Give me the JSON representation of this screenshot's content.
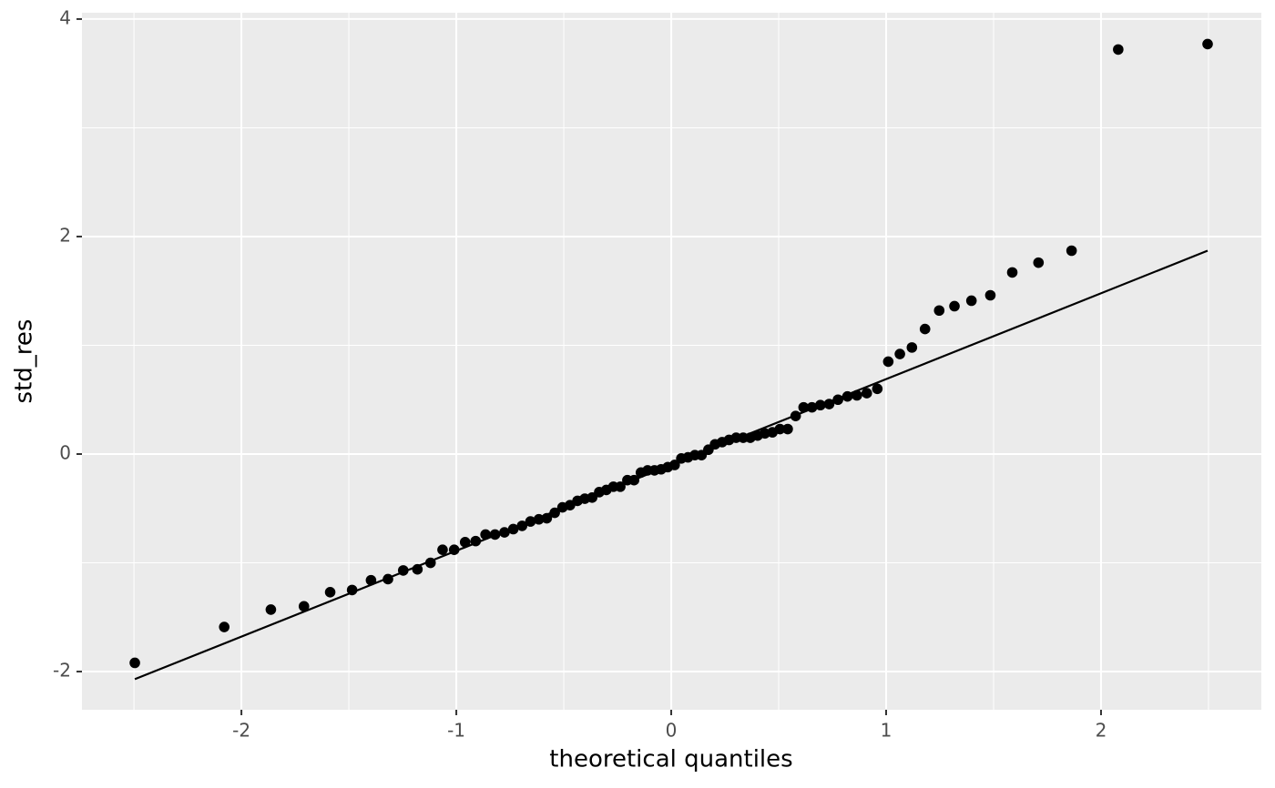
{
  "chart_data": {
    "type": "scatter",
    "xlabel": "theoretical quantiles",
    "ylabel": "std_res",
    "xlim": [
      -2.742,
      2.746
    ],
    "ylim": [
      -2.351,
      4.058
    ],
    "xticks": [
      -2,
      -1,
      0,
      1,
      2
    ],
    "yticks": [
      -2,
      0,
      2,
      4
    ],
    "grid": true,
    "color": "#000000",
    "x": [
      -2.496,
      -2.08,
      -1.863,
      -1.709,
      -1.587,
      -1.485,
      -1.397,
      -1.318,
      -1.247,
      -1.181,
      -1.12,
      -1.064,
      -1.01,
      -0.959,
      -0.91,
      -0.864,
      -0.82,
      -0.776,
      -0.735,
      -0.694,
      -0.655,
      -0.616,
      -0.579,
      -0.542,
      -0.506,
      -0.471,
      -0.436,
      -0.402,
      -0.368,
      -0.335,
      -0.302,
      -0.269,
      -0.237,
      -0.204,
      -0.173,
      -0.141,
      -0.11,
      -0.078,
      -0.047,
      -0.016,
      0.016,
      0.047,
      0.078,
      0.11,
      0.141,
      0.173,
      0.204,
      0.237,
      0.269,
      0.302,
      0.335,
      0.368,
      0.402,
      0.436,
      0.471,
      0.506,
      0.542,
      0.579,
      0.616,
      0.655,
      0.694,
      0.735,
      0.776,
      0.82,
      0.864,
      0.91,
      0.959,
      1.01,
      1.064,
      1.12,
      1.181,
      1.247,
      1.318,
      1.397,
      1.485,
      1.587,
      1.709,
      1.863,
      2.08,
      2.496
    ],
    "values": [
      -1.92,
      -1.59,
      -1.43,
      -1.4,
      -1.27,
      -1.25,
      -1.16,
      -1.15,
      -1.07,
      -1.06,
      -1.0,
      -0.88,
      -0.88,
      -0.81,
      -0.8,
      -0.74,
      -0.74,
      -0.72,
      -0.69,
      -0.66,
      -0.62,
      -0.6,
      -0.59,
      -0.54,
      -0.49,
      -0.47,
      -0.43,
      -0.41,
      -0.4,
      -0.35,
      -0.33,
      -0.3,
      -0.3,
      -0.24,
      -0.24,
      -0.17,
      -0.15,
      -0.15,
      -0.14,
      -0.12,
      -0.1,
      -0.04,
      -0.03,
      -0.01,
      -0.01,
      0.04,
      0.09,
      0.11,
      0.13,
      0.15,
      0.15,
      0.15,
      0.17,
      0.19,
      0.2,
      0.23,
      0.23,
      0.35,
      0.43,
      0.43,
      0.45,
      0.46,
      0.5,
      0.53,
      0.54,
      0.56,
      0.6,
      0.85,
      0.92,
      0.98,
      1.15,
      1.32,
      1.36,
      1.41,
      1.46,
      1.67,
      1.76,
      1.87,
      3.72,
      3.77
    ],
    "reference_line": {
      "x": [
        -2.496,
        2.496
      ],
      "y": [
        -2.07,
        1.87
      ],
      "color": "#000000"
    }
  }
}
